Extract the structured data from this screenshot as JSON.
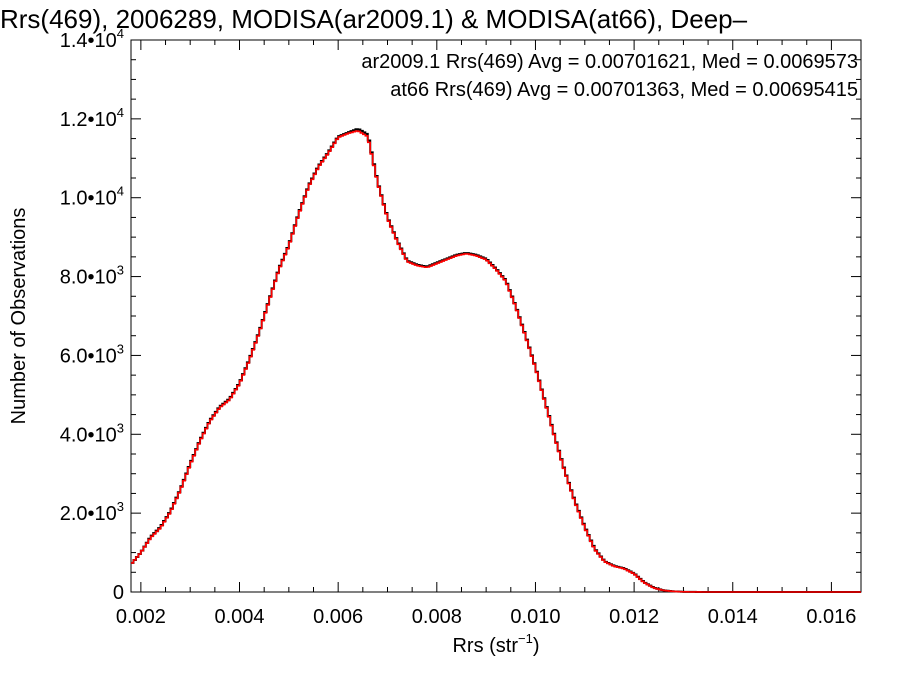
{
  "chart_data": {
    "type": "line",
    "title": "Rrs(469), 2006289, MODISA(ar2009.1) & MODISA(at66), Deep–",
    "xlabel_main": "Rrs (str",
    "xlabel_sup": "−1",
    "xlabel_close": ")",
    "ylabel": "Number of Observations",
    "xlim": [
      0.0018,
      0.0166
    ],
    "ylim": [
      0,
      14000
    ],
    "xticks": [
      {
        "value": 0.002,
        "label": "0.002"
      },
      {
        "value": 0.004,
        "label": "0.004"
      },
      {
        "value": 0.006,
        "label": "0.006"
      },
      {
        "value": 0.008,
        "label": "0.008"
      },
      {
        "value": 0.01,
        "label": "0.010"
      },
      {
        "value": 0.012,
        "label": "0.012"
      },
      {
        "value": 0.014,
        "label": "0.014"
      },
      {
        "value": 0.016,
        "label": "0.016"
      }
    ],
    "yticks": [
      {
        "value": 0,
        "mant": "0",
        "exp": ""
      },
      {
        "value": 2000,
        "mant": "2.0•10",
        "exp": "3"
      },
      {
        "value": 4000,
        "mant": "4.0•10",
        "exp": "3"
      },
      {
        "value": 6000,
        "mant": "6.0•10",
        "exp": "3"
      },
      {
        "value": 8000,
        "mant": "8.0•10",
        "exp": "3"
      },
      {
        "value": 10000,
        "mant": "1.0•10",
        "exp": "4"
      },
      {
        "value": 12000,
        "mant": "1.2•10",
        "exp": "4"
      },
      {
        "value": 14000,
        "mant": "1.4•10",
        "exp": "4"
      }
    ],
    "annotations": [
      {
        "text": "ar2009.1 Rrs(469) Avg = 0.00701621, Med = 0.0069573",
        "color": "#000000"
      },
      {
        "text": "at66 Rrs(469) Avg = 0.00701363, Med = 0.00695415",
        "color": "#ff0000"
      }
    ],
    "x": [
      0.0018,
      0.002,
      0.0022,
      0.0024,
      0.0026,
      0.0028,
      0.003,
      0.0032,
      0.0034,
      0.0036,
      0.0038,
      0.004,
      0.0042,
      0.0044,
      0.0046,
      0.0048,
      0.005,
      0.0052,
      0.0054,
      0.0056,
      0.0058,
      0.006,
      0.0062,
      0.0064,
      0.0066,
      0.0068,
      0.007,
      0.0072,
      0.0074,
      0.0076,
      0.0078,
      0.008,
      0.0082,
      0.0084,
      0.0086,
      0.0088,
      0.009,
      0.0092,
      0.0094,
      0.0096,
      0.0098,
      0.01,
      0.0102,
      0.0104,
      0.0106,
      0.0108,
      0.011,
      0.0112,
      0.0114,
      0.0116,
      0.0118,
      0.012,
      0.0122,
      0.0124,
      0.0126,
      0.0128,
      0.013,
      0.0132,
      0.0134,
      0.0136,
      0.0138,
      0.014,
      0.0145,
      0.015,
      0.0155,
      0.016,
      0.0166
    ],
    "series": [
      {
        "name": "ar2009.1",
        "color": "#000000",
        "values": [
          700,
          1000,
          1400,
          1650,
          2050,
          2600,
          3250,
          3850,
          4350,
          4700,
          4900,
          5300,
          5900,
          6600,
          7400,
          8200,
          8800,
          9600,
          10300,
          10800,
          11150,
          11550,
          11650,
          11750,
          11600,
          10400,
          9500,
          8900,
          8400,
          8300,
          8250,
          8350,
          8450,
          8550,
          8600,
          8550,
          8450,
          8200,
          7900,
          7250,
          6500,
          5700,
          4800,
          3900,
          3050,
          2300,
          1650,
          1100,
          780,
          660,
          600,
          470,
          250,
          110,
          40,
          15,
          5,
          2,
          0,
          0,
          0,
          0,
          0,
          0,
          0,
          0,
          0
        ]
      },
      {
        "name": "at66",
        "color": "#ff0000",
        "values": [
          700,
          1000,
          1380,
          1630,
          2030,
          2580,
          3230,
          3830,
          4330,
          4680,
          4880,
          5280,
          5880,
          6580,
          7380,
          8180,
          8780,
          9580,
          10280,
          10780,
          11130,
          11530,
          11630,
          11700,
          11550,
          10380,
          9480,
          8880,
          8380,
          8280,
          8230,
          8330,
          8430,
          8530,
          8580,
          8530,
          8430,
          8180,
          7880,
          7230,
          6480,
          5680,
          4780,
          3880,
          3030,
          2280,
          1630,
          1080,
          770,
          650,
          590,
          460,
          240,
          100,
          40,
          15,
          5,
          2,
          0,
          0,
          0,
          0,
          0,
          0,
          0,
          0,
          0
        ]
      }
    ]
  }
}
